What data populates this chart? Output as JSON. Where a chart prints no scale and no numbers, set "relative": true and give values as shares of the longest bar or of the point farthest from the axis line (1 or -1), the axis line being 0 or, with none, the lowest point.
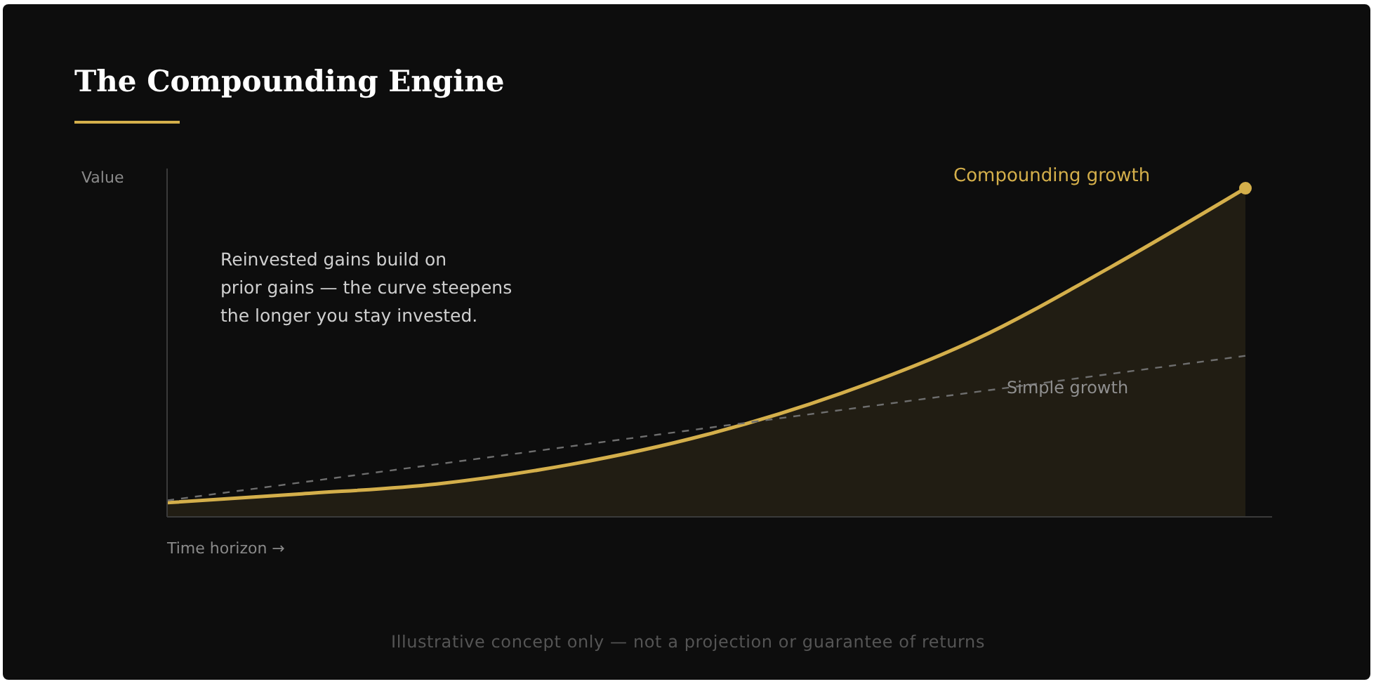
{
  "chart_data": {
    "type": "area",
    "title": "The Compounding Engine",
    "ylabel": "Value",
    "xlabel": "Time horizon →",
    "relative": true,
    "categories": [
      null,
      null,
      null,
      null,
      null,
      null,
      null,
      null,
      null
    ],
    "series": [
      {
        "name": "Compounding growth",
        "color": "#d4af4b",
        "values": [
          0.043,
          0.07,
          0.1,
          0.16,
          0.25,
          0.376,
          0.54,
          0.76,
          1
        ]
      },
      {
        "name": "Simple growth",
        "type": "line",
        "line_style": "dashed",
        "color": "#6e6e6e",
        "values": [
          0.05,
          0.105,
          0.16,
          0.215,
          0.27,
          0.325,
          0.38,
          0.435,
          0.49
        ]
      }
    ],
    "annotations": [
      "Reinvested gains build on\nprior gains — the curve steepens\nthe longer you stay invested.",
      "Illustrative concept only — not a projection or guarantee of returns"
    ]
  }
}
